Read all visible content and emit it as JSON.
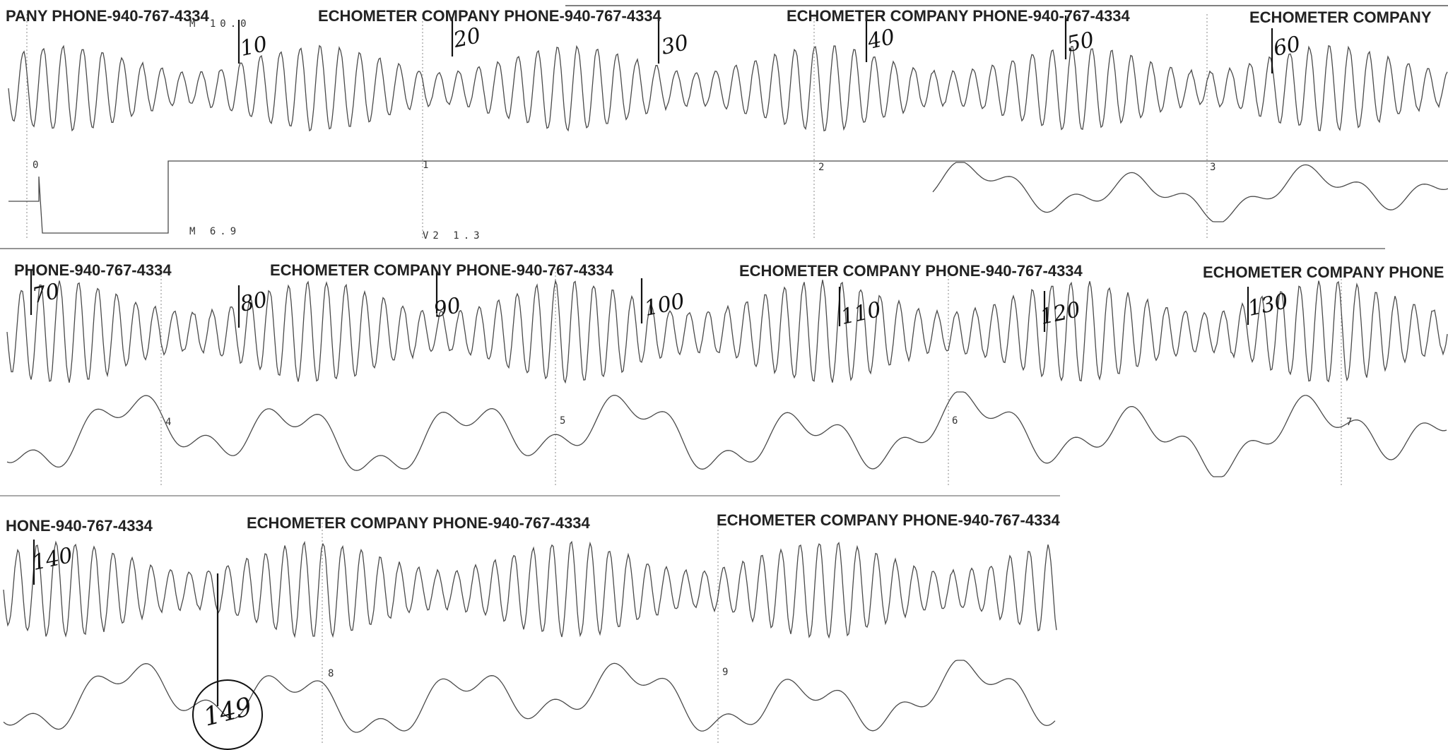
{
  "document": {
    "headers": [
      {
        "text": "PANY  PHONE-940-767-4334",
        "row": 0
      },
      {
        "text": "ECHOMETER COMPANY  PHONE-940-767-4334",
        "row": 0
      },
      {
        "text": "ECHOMETER COMPANY  PHONE-940-767-4334",
        "row": 0
      },
      {
        "text": "ECHOMETER COMPANY",
        "row": 0
      },
      {
        "text": "PHONE-940-767-4334",
        "row": 1
      },
      {
        "text": "ECHOMETER COMPANY  PHONE-940-767-4334",
        "row": 1
      },
      {
        "text": "ECHOMETER COMPANY  PHONE-940-767-4334",
        "row": 1
      },
      {
        "text": "ECHOMETER COMPANY  PHONE",
        "row": 1
      },
      {
        "text": "HONE-940-767-4334",
        "row": 2
      },
      {
        "text": "ECHOMETER COMPANY  PHONE-940-767-4334",
        "row": 2
      },
      {
        "text": "ECHOMETER COMPANY  PHONE-940-767-4334",
        "row": 2
      }
    ],
    "printed_labels": [
      {
        "text": "M 10.0"
      },
      {
        "text": "M  6.9"
      },
      {
        "text": "V2 1.3"
      }
    ],
    "second_marks": [
      "0",
      "1",
      "2",
      "3",
      "4",
      "5",
      "6",
      "7",
      "8",
      "9"
    ],
    "handwritten_marks": [
      "10",
      "20",
      "30",
      "40",
      "50",
      "60",
      "70",
      "80",
      "90",
      "100",
      "110",
      "120",
      "130",
      "140"
    ],
    "circled_total": "149",
    "ink_color": "#4a4a4a",
    "pen_color": "#111111"
  }
}
